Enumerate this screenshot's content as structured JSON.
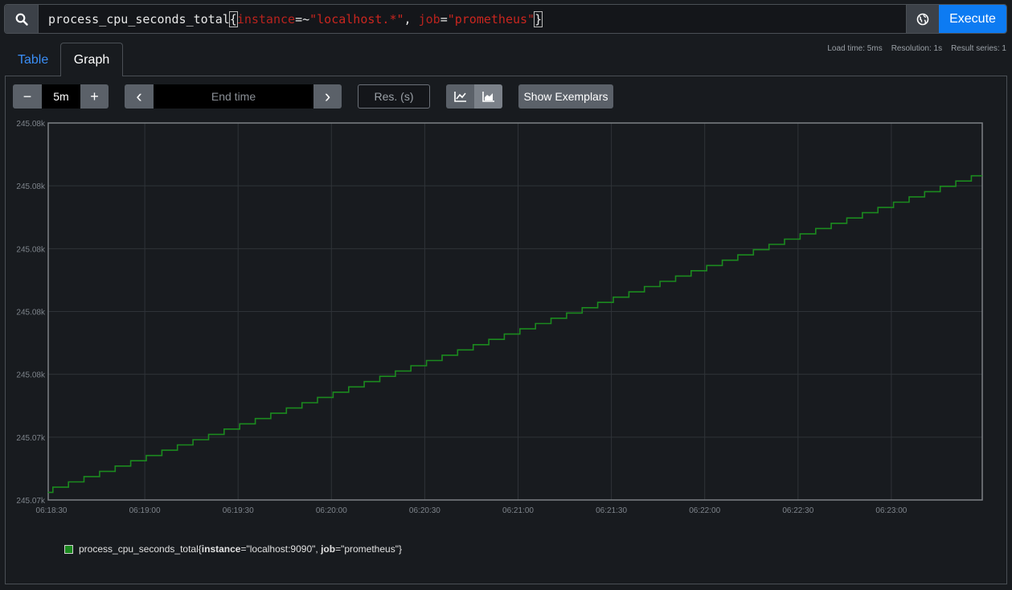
{
  "query": {
    "metric": "process_cpu_seconds_total",
    "open_brace": "{",
    "label1_name": "instance",
    "label1_op": "=~",
    "label1_value": "\"localhost.*\"",
    "sep": ", ",
    "label2_name": "job",
    "label2_op": "=",
    "label2_value": "\"prometheus\"",
    "close_brace": "}",
    "execute_label": "Execute"
  },
  "icons": {
    "search": "search-icon",
    "globe": "globe-icon"
  },
  "tabs": {
    "table": "Table",
    "graph": "Graph"
  },
  "stats": {
    "load_time": "Load time: 5ms",
    "resolution": "Resolution: 1s",
    "result_series": "Result series: 1"
  },
  "controls": {
    "range_decrease": "−",
    "range_value": "5m",
    "range_increase": "+",
    "prev": "‹",
    "end_time_placeholder": "End time",
    "next": "›",
    "resolution_placeholder": "Res. (s)",
    "show_exemplars": "Show Exemplars"
  },
  "colors": {
    "accent": "#0d7bf2",
    "series": "#1b8a1f",
    "label_name": "#b8231e"
  },
  "chart_data": {
    "type": "line",
    "x_tick_labels": [
      "06:18:30",
      "06:19:00",
      "06:19:30",
      "06:20:00",
      "06:20:30",
      "06:21:00",
      "06:21:30",
      "06:22:00",
      "06:22:30",
      "06:23:00"
    ],
    "y_tick_labels": [
      "245.08k",
      "245.08k",
      "245.08k",
      "245.08k",
      "245.08k",
      "245.07k",
      "245.07k"
    ],
    "grid": true,
    "series": [
      {
        "legend_metric": "process_cpu_seconds_total",
        "legend_open": "{",
        "legend_k1": "instance",
        "legend_v1": "=\"localhost:9090\", ",
        "legend_k2": "job",
        "legend_v2": "=\"prometheus\"}",
        "x_start": "06:18:30",
        "x_end": "06:23:30",
        "y_start_frac": 0.02,
        "y_end_frac": 0.86
      }
    ]
  }
}
